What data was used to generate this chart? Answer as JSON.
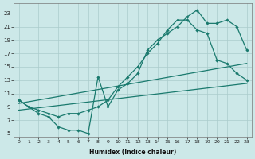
{
  "bg_color": "#cce8e8",
  "grid_color": "#aacccc",
  "line_color": "#1a7a6e",
  "curve1_x": [
    0,
    1,
    2,
    3,
    4,
    5,
    6,
    7,
    8,
    9,
    10,
    11,
    12,
    13,
    14,
    15,
    16,
    17,
    18,
    19,
    20,
    21,
    22,
    23
  ],
  "curve1_y": [
    10,
    9,
    8,
    7.5,
    6,
    5.5,
    5.5,
    5,
    13.5,
    9,
    11.5,
    12.5,
    14,
    17.5,
    19,
    20,
    21,
    22.5,
    23.5,
    21.5,
    21.5,
    22,
    21,
    17.5
  ],
  "curve2_x": [
    0,
    1,
    2,
    3,
    4,
    5,
    6,
    7,
    8,
    9,
    10,
    11,
    12,
    13,
    14,
    15,
    16,
    17,
    18,
    19,
    20,
    21,
    22,
    23
  ],
  "curve2_y": [
    10,
    9,
    8.5,
    8,
    7.5,
    8,
    8,
    8.5,
    9,
    10,
    12,
    13.5,
    15,
    17,
    18.5,
    20.5,
    22,
    22,
    20.5,
    20,
    16,
    15.5,
    14,
    13
  ],
  "line1_x": [
    0,
    23
  ],
  "line1_y": [
    9.5,
    15.5
  ],
  "line2_x": [
    0,
    23
  ],
  "line2_y": [
    8.5,
    12.5
  ],
  "xlabel": "Humidex (Indice chaleur)",
  "yticks": [
    5,
    7,
    9,
    11,
    13,
    15,
    17,
    19,
    21,
    23
  ],
  "xticks": [
    0,
    1,
    2,
    3,
    4,
    5,
    6,
    7,
    8,
    9,
    10,
    11,
    12,
    13,
    14,
    15,
    16,
    17,
    18,
    19,
    20,
    21,
    22,
    23
  ],
  "ylim": [
    4.5,
    24.5
  ],
  "xlim": [
    -0.5,
    23.5
  ]
}
